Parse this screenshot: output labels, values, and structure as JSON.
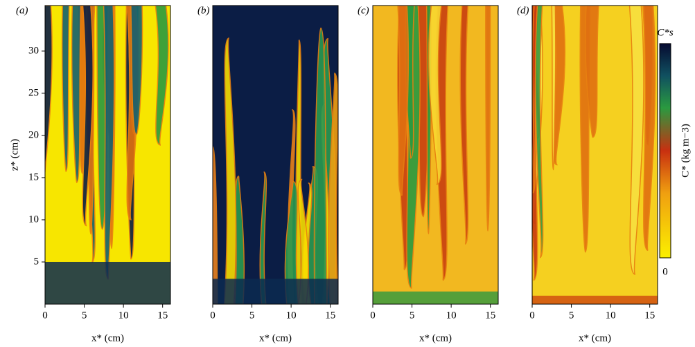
{
  "panels": [
    {
      "label": "(a)"
    },
    {
      "label": "(b)"
    },
    {
      "label": "(c)"
    },
    {
      "label": "(d)"
    }
  ],
  "x_axis": {
    "label": "x* (cm)",
    "ticks": [
      0,
      5,
      10,
      15
    ],
    "lim": [
      0,
      16
    ]
  },
  "y_axis": {
    "label": "z* (cm)",
    "ticks": [
      5,
      10,
      15,
      20,
      25,
      30
    ],
    "lim": [
      0,
      35.4
    ]
  },
  "colorbar": {
    "top_label": "C*s",
    "bottom_label": "0",
    "label": "C* (kg m−3)"
  }
}
